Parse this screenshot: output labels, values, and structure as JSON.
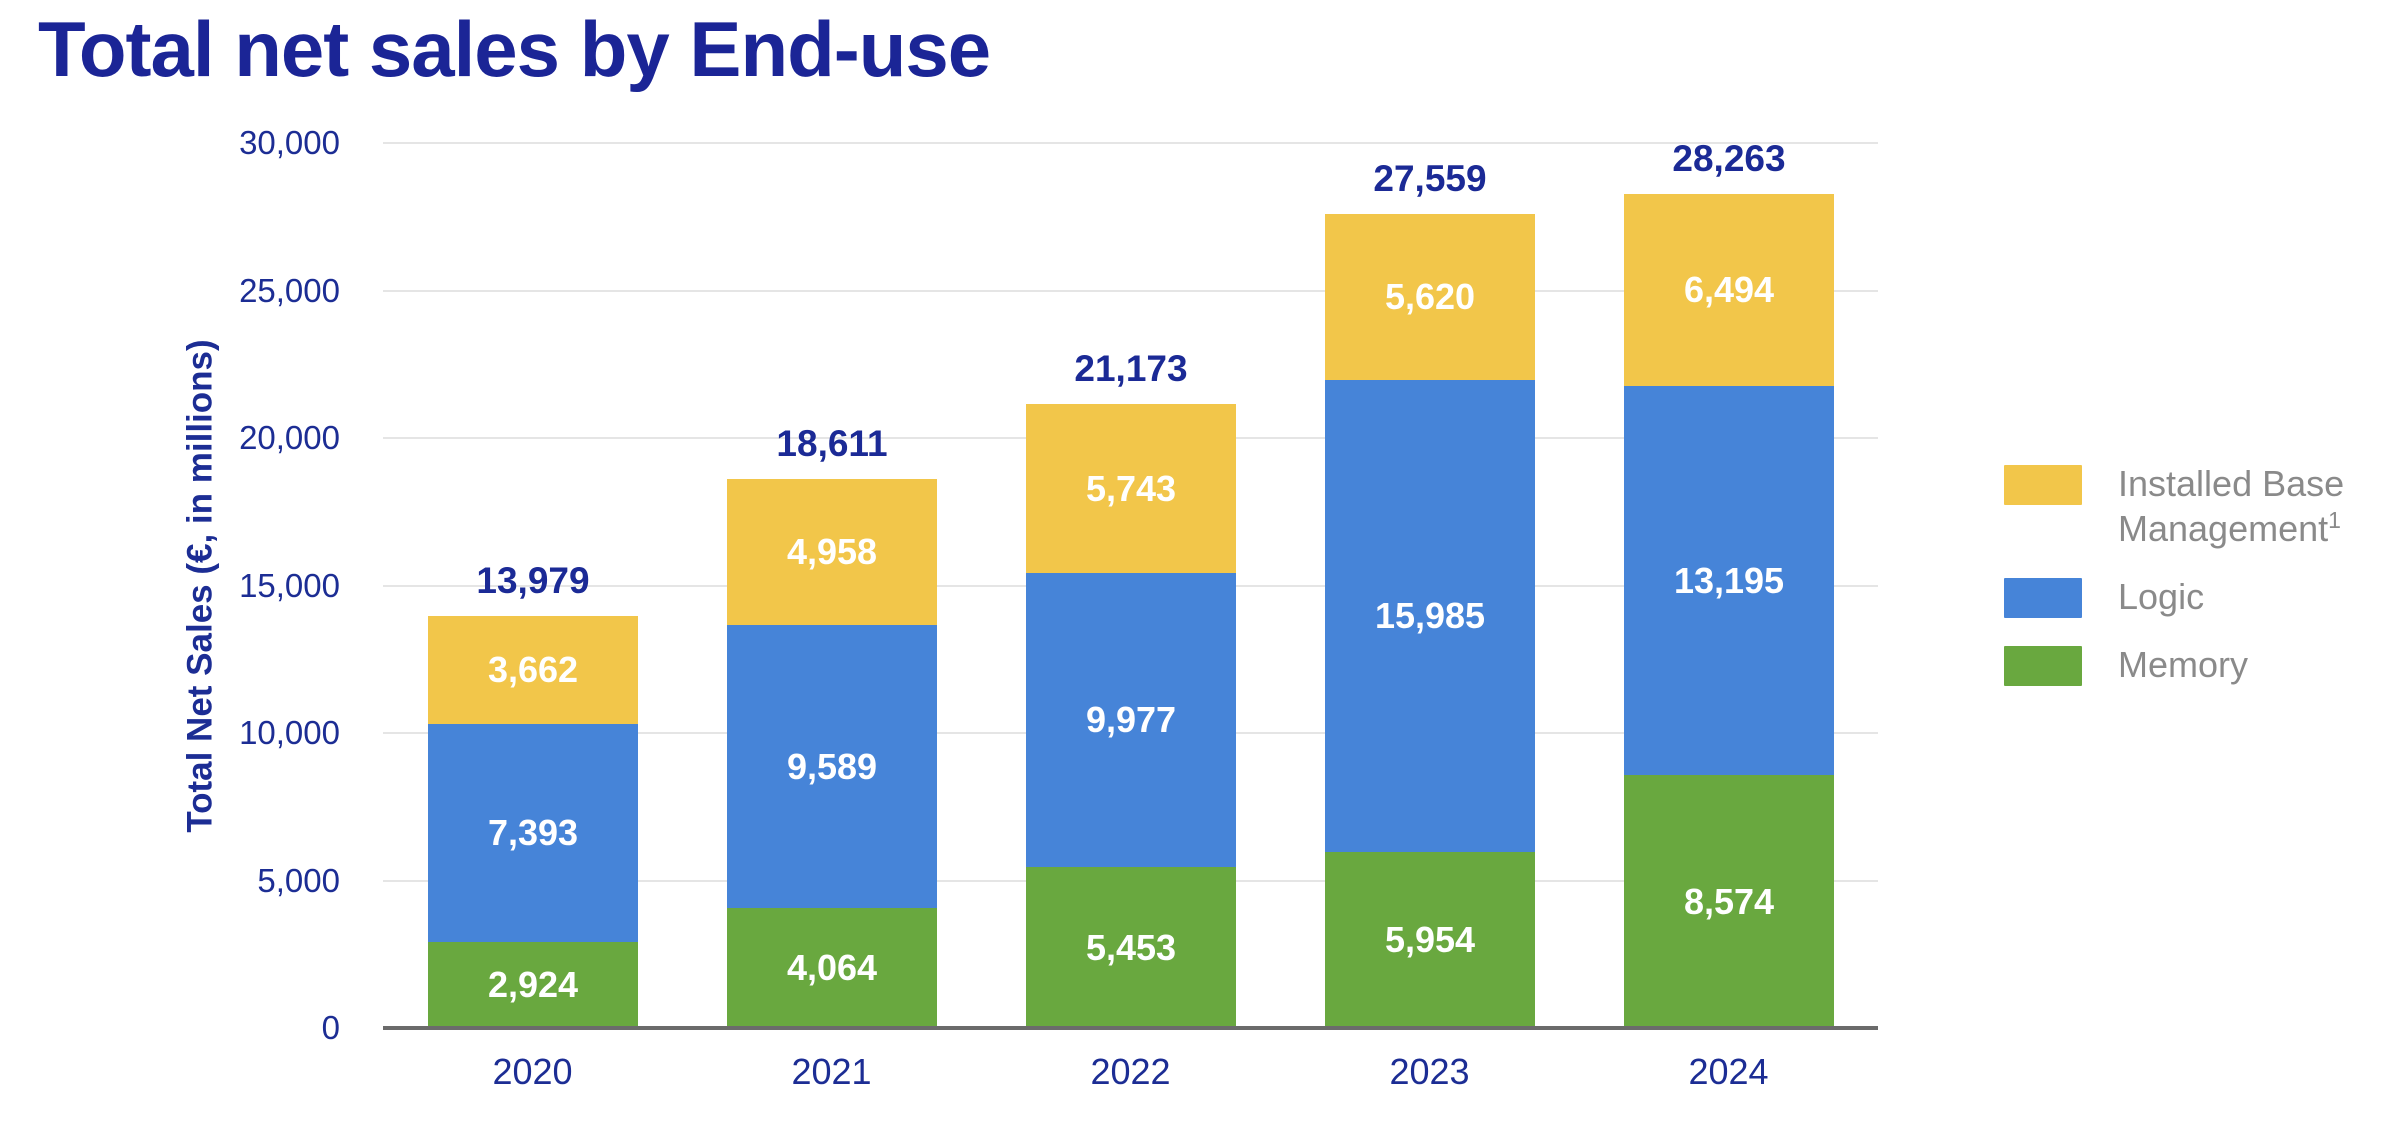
{
  "page": {
    "title": "Total net sales by End-use"
  },
  "colors": {
    "title_navy": "#1B2596",
    "axis_navy": "#1C2D94",
    "gridline": "#E5E5E5",
    "axis_line": "#6B6B6B",
    "legend_text": "#8A8A8A",
    "bar_value_text": "#FFFFFF"
  },
  "chart_data": {
    "type": "bar",
    "stacked": true,
    "title": "Total net sales by End-use",
    "xlabel": "",
    "ylabel": "Total Net Sales (€, in millions)",
    "categories": [
      "2020",
      "2021",
      "2022",
      "2023",
      "2024"
    ],
    "series": [
      {
        "name": "Memory",
        "color": "#69A83F",
        "values": [
          2924,
          4064,
          5453,
          5954,
          8574
        ]
      },
      {
        "name": "Logic",
        "color": "#4684D8",
        "values": [
          7393,
          9589,
          9977,
          15985,
          13195
        ]
      },
      {
        "name": "Installed Base Management",
        "name_superscript": "1",
        "color": "#F2C64A",
        "values": [
          3662,
          4958,
          5743,
          5620,
          6494
        ]
      }
    ],
    "totals": [
      13979,
      18611,
      21173,
      27559,
      28263
    ],
    "ylim": [
      0,
      30000
    ],
    "ytick_step": 5000,
    "ytick_labels": [
      "0",
      "5,000",
      "10,000",
      "15,000",
      "20,000",
      "25,000",
      "30,000"
    ],
    "grid": true,
    "legend_position": "right"
  },
  "legend": {
    "items": [
      {
        "label": "Installed Base Management",
        "sup": "1",
        "color": "#F2C64A"
      },
      {
        "label": "Logic",
        "sup": "",
        "color": "#4684D8"
      },
      {
        "label": "Memory",
        "sup": "",
        "color": "#69A83F"
      }
    ]
  }
}
